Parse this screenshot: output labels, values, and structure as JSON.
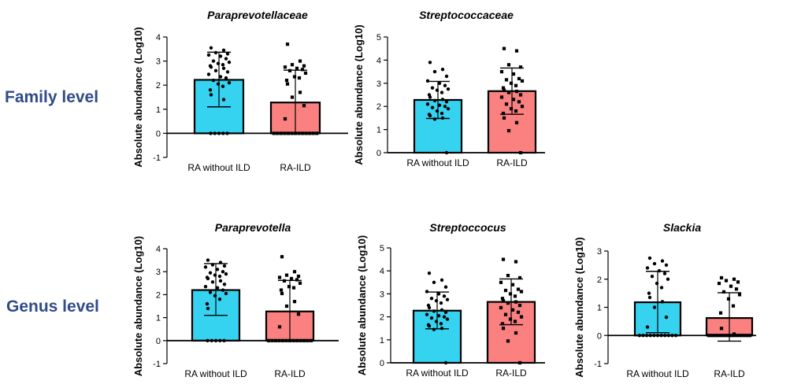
{
  "row_labels": {
    "family": "Family level",
    "genus": "Genus level"
  },
  "colors": {
    "ra_without_ild": "#35d3f0",
    "ra_ild": "#fb8080",
    "axis": "#000000",
    "row_label": "#2f4b8a"
  },
  "chart_data": [
    {
      "id": "family-paraprevotellaceae",
      "type": "bar",
      "title": "Paraprevotellaceae",
      "ylabel": "Absolute abundance (Log10)",
      "categories": [
        "RA without ILD",
        "RA-ILD"
      ],
      "values": [
        2.22,
        1.28
      ],
      "error_high": [
        3.37,
        2.62
      ],
      "error_low": [
        1.1,
        0.0
      ],
      "ylim": [
        -1,
        4
      ],
      "yticks": [
        "-1",
        "0",
        "1",
        "2",
        "3",
        "4"
      ],
      "points": [
        [
          3.55,
          3.45,
          3.35,
          3.3,
          3.25,
          3.2,
          3.1,
          3.0,
          2.95,
          2.9,
          2.85,
          2.8,
          2.75,
          2.7,
          2.6,
          2.55,
          2.45,
          2.35,
          2.3,
          2.2,
          2.1,
          2.05,
          1.95,
          1.8,
          1.6,
          1.4,
          0,
          0,
          0,
          0,
          0
        ],
        [
          3.7,
          3.0,
          2.85,
          2.8,
          2.75,
          2.7,
          2.65,
          2.6,
          2.5,
          2.35,
          2.3,
          2.2,
          2.05,
          1.7,
          1.5,
          1.15,
          0.6,
          0,
          0,
          0,
          0,
          0,
          0,
          0,
          0,
          0,
          0,
          0,
          0,
          0
        ]
      ]
    },
    {
      "id": "family-streptococcaceae",
      "type": "bar",
      "title": "Streptococcaceae",
      "ylabel": "Absolute abundance (Log10)",
      "categories": [
        "RA without ILD",
        "RA-ILD"
      ],
      "values": [
        2.28,
        2.66
      ],
      "error_high": [
        3.08,
        3.66
      ],
      "error_low": [
        1.48,
        1.66
      ],
      "ylim": [
        0,
        5
      ],
      "yticks": [
        "0",
        "1",
        "2",
        "3",
        "4",
        "5"
      ],
      "points": [
        [
          3.9,
          3.6,
          3.5,
          3.3,
          3.1,
          3.0,
          2.9,
          2.8,
          2.75,
          2.7,
          2.6,
          2.5,
          2.4,
          2.3,
          2.25,
          2.2,
          2.1,
          2.05,
          2.0,
          1.95,
          1.9,
          1.8,
          1.7,
          1.65,
          1.6,
          1.5,
          1.45,
          0.0
        ],
        [
          4.5,
          4.4,
          3.8,
          3.7,
          3.5,
          3.4,
          3.2,
          3.15,
          3.1,
          3.0,
          2.9,
          2.8,
          2.7,
          2.65,
          2.6,
          2.5,
          2.4,
          2.3,
          2.2,
          2.1,
          2.0,
          1.9,
          1.8,
          1.7,
          1.5,
          1.3,
          0.95,
          0.0
        ]
      ]
    },
    {
      "id": "genus-paraprevotella",
      "type": "bar",
      "title": "Paraprevotella",
      "ylabel": "Absolute abundance (Log10)",
      "categories": [
        "RA without ILD",
        "RA-ILD"
      ],
      "values": [
        2.2,
        1.27
      ],
      "error_high": [
        3.35,
        2.62
      ],
      "error_low": [
        1.1,
        0.0
      ],
      "ylim": [
        -1,
        4
      ],
      "yticks": [
        "-1",
        "0",
        "1",
        "2",
        "3",
        "4"
      ],
      "points": [
        [
          3.5,
          3.4,
          3.3,
          3.25,
          3.2,
          3.1,
          3.0,
          2.95,
          2.9,
          2.85,
          2.8,
          2.75,
          2.7,
          2.6,
          2.55,
          2.45,
          2.35,
          2.3,
          2.2,
          2.1,
          2.05,
          1.95,
          1.8,
          1.6,
          1.4,
          0,
          0,
          0,
          0,
          0
        ],
        [
          3.65,
          3.0,
          2.85,
          2.8,
          2.75,
          2.7,
          2.65,
          2.6,
          2.5,
          2.35,
          2.3,
          2.2,
          2.05,
          1.7,
          1.5,
          1.15,
          0.6,
          0,
          0,
          0,
          0,
          0,
          0,
          0,
          0,
          0,
          0,
          0,
          0,
          0
        ]
      ]
    },
    {
      "id": "genus-streptococcus",
      "type": "bar",
      "title": "Streptoccocus",
      "ylabel": "Absolute abundance (Log10)",
      "categories": [
        "RA without ILD",
        "RA-ILD"
      ],
      "values": [
        2.27,
        2.65
      ],
      "error_high": [
        3.08,
        3.65
      ],
      "error_low": [
        1.48,
        1.66
      ],
      "ylim": [
        0,
        5
      ],
      "yticks": [
        "0",
        "1",
        "2",
        "3",
        "4",
        "5"
      ],
      "points": [
        [
          3.9,
          3.6,
          3.5,
          3.3,
          3.1,
          3.0,
          2.9,
          2.8,
          2.75,
          2.7,
          2.6,
          2.5,
          2.4,
          2.3,
          2.25,
          2.2,
          2.1,
          2.05,
          2.0,
          1.95,
          1.9,
          1.8,
          1.7,
          1.65,
          1.6,
          1.5,
          1.45,
          0.0
        ],
        [
          4.5,
          4.4,
          3.8,
          3.7,
          3.5,
          3.4,
          3.2,
          3.15,
          3.1,
          3.0,
          2.9,
          2.8,
          2.7,
          2.65,
          2.6,
          2.5,
          2.4,
          2.3,
          2.2,
          2.1,
          2.0,
          1.9,
          1.8,
          1.7,
          1.5,
          1.3,
          0.95,
          0.0
        ]
      ]
    },
    {
      "id": "genus-slackia",
      "type": "bar",
      "title": "Slackia",
      "ylabel": "Absolute abundance (Log10)",
      "categories": [
        "RA without ILD",
        "RA-ILD"
      ],
      "values": [
        1.18,
        0.62
      ],
      "error_high": [
        2.28,
        1.52
      ],
      "error_low": [
        0.1,
        -0.2
      ],
      "ylim": [
        -1,
        3
      ],
      "yticks": [
        "-1",
        "0",
        "1",
        "2",
        "3"
      ],
      "points": [
        [
          2.75,
          2.65,
          2.55,
          2.5,
          2.4,
          2.3,
          2.2,
          2.1,
          2.0,
          1.85,
          1.7,
          1.5,
          1.35,
          1.2,
          1.0,
          0.65,
          0.3,
          0,
          0,
          0,
          0,
          0,
          0,
          0,
          0,
          0,
          0,
          0
        ],
        [
          2.05,
          2.0,
          1.95,
          1.9,
          1.85,
          1.75,
          1.65,
          1.55,
          1.45,
          1.3,
          1.05,
          0.8,
          0.25,
          0.05,
          0,
          0,
          0,
          0,
          0,
          0,
          0,
          0,
          0,
          0,
          0,
          0,
          0,
          0
        ]
      ]
    }
  ]
}
